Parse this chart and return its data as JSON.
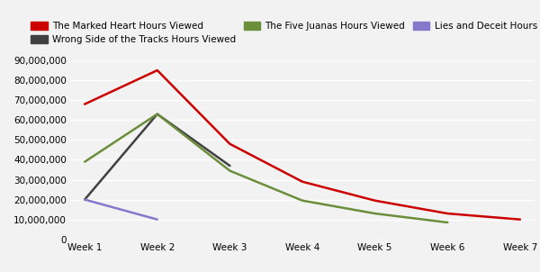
{
  "series": [
    {
      "label": "The Marked Heart Hours Viewed",
      "color": "#cc0000",
      "values": [
        68000000,
        85000000,
        48000000,
        29000000,
        19500000,
        13000000,
        10000000
      ]
    },
    {
      "label": "Wrong Side of the Tracks Hours Viewed",
      "color": "#404040",
      "values": [
        20000000,
        63000000,
        37000000,
        null,
        null,
        null,
        null
      ]
    },
    {
      "label": "The Five Juanas Hours Viewed",
      "color": "#6b8e3a",
      "values": [
        39000000,
        63000000,
        34500000,
        19500000,
        13000000,
        8500000,
        null
      ]
    },
    {
      "label": "Lies and Deceit Hours Viewed",
      "color": "#8878cc",
      "values": [
        20000000,
        10000000,
        null,
        null,
        null,
        null,
        null
      ]
    }
  ],
  "x_labels": [
    "Week 1",
    "Week 2",
    "Week 3",
    "Week 4",
    "Week 5",
    "Week 6",
    "Week 7"
  ],
  "ylim": [
    0,
    93000000
  ],
  "yticks": [
    0,
    10000000,
    20000000,
    30000000,
    40000000,
    50000000,
    60000000,
    70000000,
    80000000,
    90000000
  ],
  "ytick_labels": [
    "0",
    "10,000,000",
    "20,000,000",
    "30,000,000",
    "40,000,000",
    "50,000,000",
    "60,000,000",
    "70,000,000",
    "80,000,000",
    "90,000,000"
  ],
  "background_color": "#f2f2f2",
  "grid_color": "#ffffff",
  "legend_fontsize": 7.5,
  "tick_fontsize": 7.5,
  "line_width": 1.8
}
